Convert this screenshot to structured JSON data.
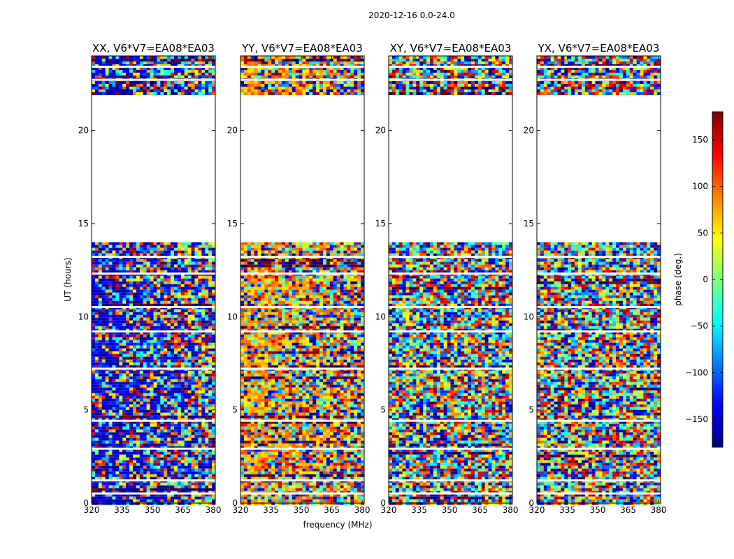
{
  "figure": {
    "suptitle": "2020-12-16 0.0-24.0"
  },
  "chart_data": {
    "type": "heatmap",
    "suptitle": "2020-12-16 0.0-24.0",
    "xlabel": "frequency (MHz)",
    "ylabel": "UT (hours)",
    "xlim": [
      320,
      381
    ],
    "ylim": [
      0,
      24
    ],
    "xticks": [
      320,
      335,
      350,
      365,
      380
    ],
    "yticks": [
      0,
      5,
      10,
      15,
      20
    ],
    "panels": [
      {
        "title": "XX, V6*V7=EA08*EA03",
        "dominant_phase": -150
      },
      {
        "title": "YY, V6*V7=EA08*EA03",
        "dominant_phase": 80
      },
      {
        "title": "XY, V6*V7=EA08*EA03",
        "dominant_phase": null
      },
      {
        "title": "YX, V6*V7=EA08*EA03",
        "dominant_phase": null
      }
    ],
    "data_bands_hours": [
      [
        0,
        14
      ],
      [
        22,
        24
      ]
    ],
    "gap_hours": [
      [
        14,
        22
      ]
    ],
    "blank_rows_hours": [
      0.5,
      1.2,
      2.9,
      4.4,
      7.2,
      9.2,
      10.5,
      12.3,
      13.2,
      22.7,
      23.4
    ],
    "colorbar": {
      "label": "phase (deg.)",
      "range": [
        -180,
        180
      ],
      "ticks": [
        -150,
        -100,
        -50,
        0,
        50,
        100,
        150
      ],
      "colormap": "jet",
      "colors": [
        "#00007f",
        "#0000ff",
        "#007fff",
        "#00ffff",
        "#7fff7f",
        "#ffff00",
        "#ff7f00",
        "#ff0000",
        "#7f0000"
      ]
    }
  }
}
